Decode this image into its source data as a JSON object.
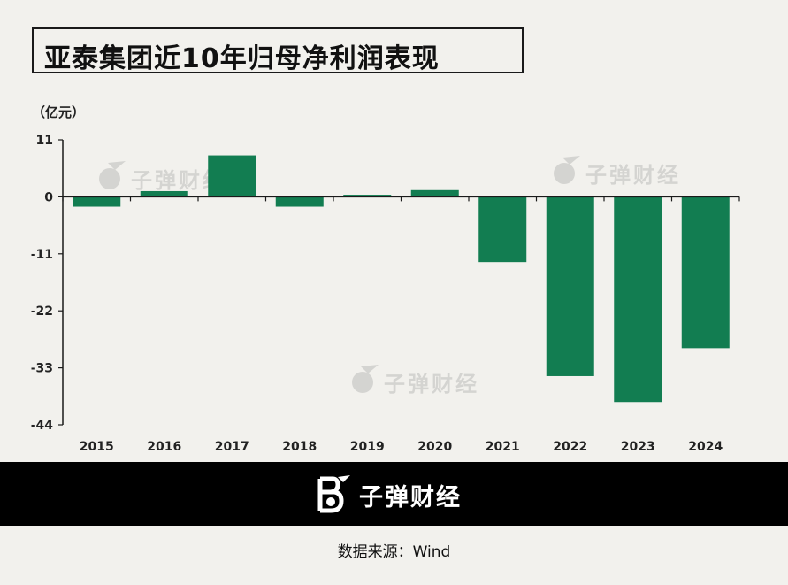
{
  "title": "亚泰集团近10年归母净利润表现",
  "unit": "（亿元）",
  "watermark": "子弹财经",
  "footer": {
    "brand": "子弹财经",
    "source": "数据来源：Wind"
  },
  "colors": {
    "bar": "#127d51",
    "background": "#f2f1ed",
    "axis": "#1a1a1a"
  },
  "chart_data": {
    "type": "bar",
    "title": "亚泰集团近10年归母净利润表现",
    "ylabel": "（亿元）",
    "xlabel": "",
    "categories": [
      "2015",
      "2016",
      "2017",
      "2018",
      "2019",
      "2020",
      "2021",
      "2022",
      "2023",
      "2024"
    ],
    "values": [
      -1.9,
      1.1,
      8.0,
      -1.9,
      0.4,
      1.3,
      -12.6,
      -34.6,
      -39.6,
      -29.2
    ],
    "ylim": [
      -44,
      11
    ],
    "yticks": [
      11,
      0,
      -11,
      -22,
      -33,
      -44
    ],
    "grid": false,
    "legend": "none"
  }
}
